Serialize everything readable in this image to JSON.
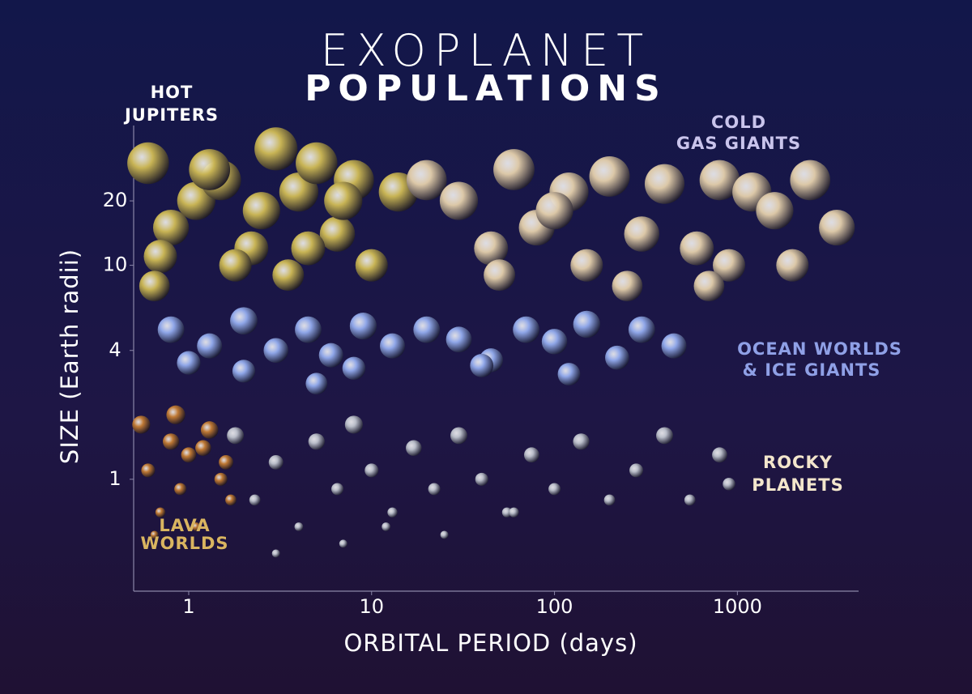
{
  "chart_data": {
    "type": "scatter",
    "title": [
      "EXOPLANET",
      "POPULATIONS"
    ],
    "x_label": "ORBITAL PERIOD (days)",
    "y_label": "SIZE (Earth radii)",
    "log_x": true,
    "log_y": true,
    "xlim": [
      0.5,
      4600
    ],
    "ylim": [
      0.3,
      45
    ],
    "xticks": [
      1,
      10,
      100,
      1000
    ],
    "yticks": [
      1,
      4,
      10,
      20
    ],
    "series": [
      {
        "name": [
          "HOT",
          "JUPITERS"
        ],
        "color": "#c8b455",
        "x": [
          0.6,
          0.8,
          1.1,
          1.5,
          2.2,
          3,
          4,
          5,
          6.5,
          8,
          0.7,
          1.3,
          2.5,
          4.5,
          7,
          10,
          14,
          0.65,
          1.8,
          3.5
        ],
        "y": [
          30,
          15,
          20,
          25,
          12,
          35,
          22,
          30,
          14,
          25,
          11,
          28,
          18,
          12,
          20,
          10,
          22,
          8,
          10,
          9
        ]
      },
      {
        "name": [
          "COLD",
          "GAS GIANTS"
        ],
        "color": "#dcc8a8",
        "x": [
          20,
          30,
          45,
          60,
          80,
          120,
          150,
          200,
          300,
          400,
          600,
          800,
          1200,
          1600,
          2500,
          3500,
          50,
          250,
          900,
          2000,
          100,
          700
        ],
        "y": [
          25,
          20,
          12,
          28,
          15,
          22,
          10,
          26,
          14,
          24,
          12,
          25,
          22,
          18,
          25,
          15,
          9,
          8,
          10,
          10,
          18,
          8
        ]
      },
      {
        "name": [
          "OCEAN WORLDS",
          "& ICE GIANTS"
        ],
        "color": "#8fa6e8",
        "x": [
          0.8,
          1,
          1.3,
          2,
          3,
          4.5,
          6,
          9,
          13,
          20,
          30,
          45,
          70,
          100,
          150,
          220,
          300,
          450,
          2,
          8,
          40,
          120,
          5
        ],
        "y": [
          5,
          3.5,
          4.2,
          5.5,
          4,
          5,
          3.8,
          5.2,
          4.2,
          5,
          4.5,
          3.6,
          5,
          4.4,
          5.3,
          3.7,
          5,
          4.2,
          3.2,
          3.3,
          3.4,
          3.1,
          2.8
        ]
      },
      {
        "name": [
          "ROCKY",
          "PLANETS"
        ],
        "color": "#b8bcc8",
        "x": [
          1.8,
          2.3,
          3,
          4,
          5,
          6.5,
          8,
          10,
          13,
          17,
          22,
          30,
          40,
          55,
          75,
          100,
          140,
          200,
          280,
          400,
          550,
          800,
          900,
          3,
          7,
          12,
          25,
          60
        ],
        "y": [
          1.6,
          0.8,
          1.2,
          0.6,
          1.5,
          0.9,
          1.8,
          1.1,
          0.7,
          1.4,
          0.9,
          1.6,
          1.0,
          0.7,
          1.3,
          0.9,
          1.5,
          0.8,
          1.1,
          1.6,
          0.8,
          1.3,
          0.95,
          0.45,
          0.5,
          0.6,
          0.55,
          0.7
        ]
      },
      {
        "name": [
          "LAVA",
          "WORLDS"
        ],
        "color": "#c07a35",
        "x": [
          0.55,
          0.6,
          0.7,
          0.8,
          0.9,
          1,
          1.1,
          1.3,
          1.5,
          1.7,
          0.65,
          0.85,
          1.2,
          1.6
        ],
        "y": [
          1.8,
          1.1,
          0.7,
          1.5,
          0.9,
          1.3,
          0.6,
          1.7,
          1.0,
          0.8,
          0.55,
          2.0,
          1.4,
          1.2
        ]
      }
    ]
  }
}
